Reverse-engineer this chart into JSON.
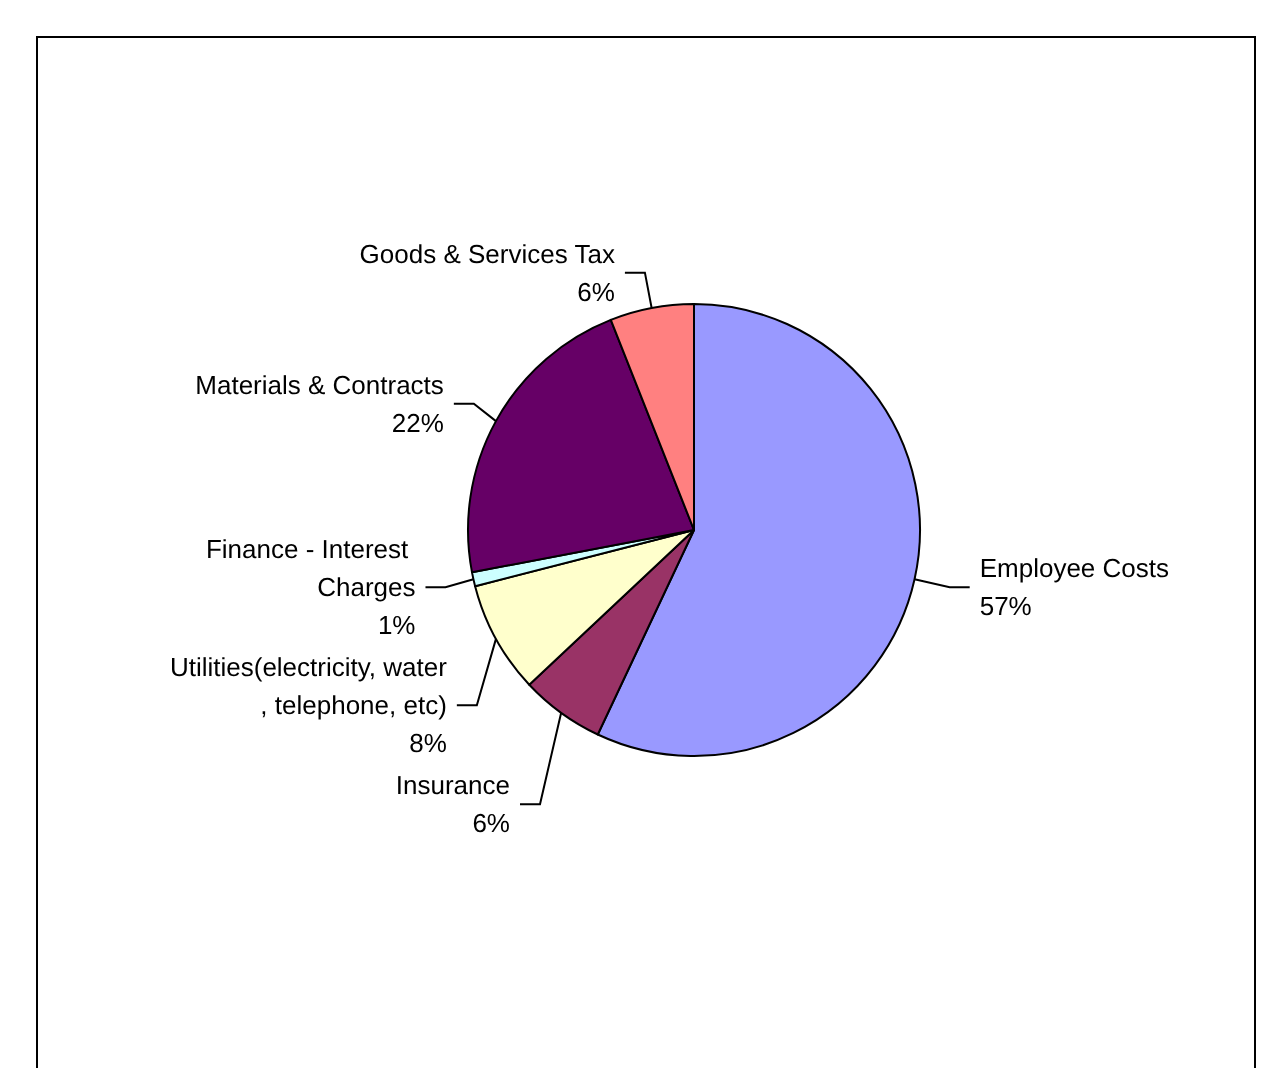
{
  "chart_data": {
    "type": "pie",
    "categories": [
      "Employee Costs",
      "Insurance",
      "Utilities(electricity, water, telephone, etc)",
      "Finance - Interest Charges",
      "Materials & Contracts",
      "Goods & Services Tax"
    ],
    "values": [
      57,
      6,
      8,
      1,
      22,
      6
    ],
    "value_labels": [
      "57%",
      "6%",
      "8%",
      "1%",
      "22%",
      "6%"
    ],
    "colors": [
      "#9999ff",
      "#993366",
      "#ffffcc",
      "#ccffff",
      "#660066",
      "#ff8080"
    ],
    "legend": false
  }
}
